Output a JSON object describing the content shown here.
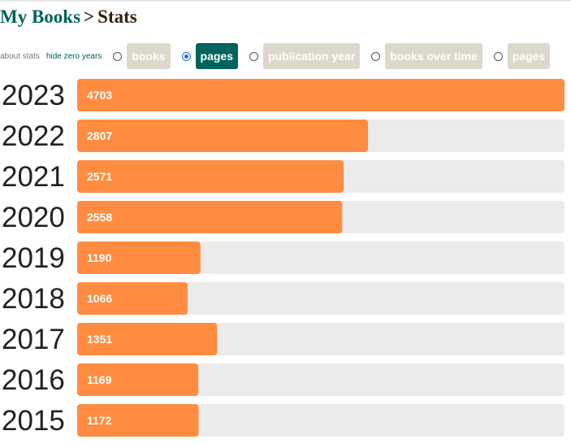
{
  "header": {
    "crumb": "My Books",
    "separator": ">",
    "title": "Stats"
  },
  "controls": {
    "about_stats": "about stats",
    "hide_zero_years": "hide zero years",
    "options": [
      {
        "label": "books",
        "selected": false
      },
      {
        "label": "pages",
        "selected": true
      },
      {
        "label": "publication year",
        "selected": false
      },
      {
        "label": "books over time",
        "selected": false
      },
      {
        "label": "pages",
        "selected": false
      }
    ]
  },
  "colors": {
    "bar": "#ff8c40",
    "track": "#ebebeb",
    "accent": "#00635d"
  },
  "chart_data": {
    "type": "bar",
    "orientation": "horizontal",
    "categories": [
      "2023",
      "2022",
      "2021",
      "2020",
      "2019",
      "2018",
      "2017",
      "2016",
      "2015"
    ],
    "values": [
      4703,
      2807,
      2571,
      2558,
      1190,
      1066,
      1351,
      1169,
      1172
    ],
    "xlim": [
      0,
      4703
    ],
    "grid": false,
    "legend": "none"
  }
}
